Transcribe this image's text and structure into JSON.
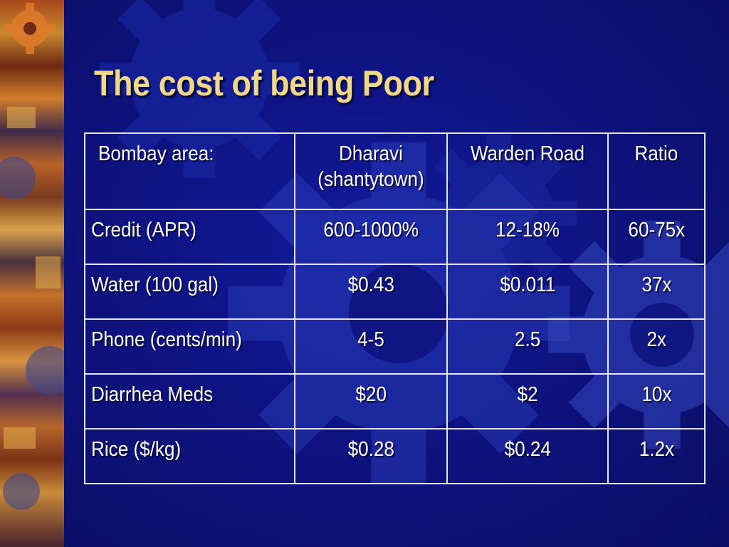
{
  "slide": {
    "title": "The cost of being Poor"
  },
  "table": {
    "headers": {
      "area": "Bombay area:",
      "dharavi_line1": "Dharavi",
      "dharavi_line2": "(shantytown)",
      "warden": "Warden Road",
      "ratio": "Ratio"
    },
    "rows": [
      {
        "item": "Credit (APR)",
        "dharavi": "600-1000%",
        "warden": "12-18%",
        "ratio": "60-75x"
      },
      {
        "item": "Water (100 gal)",
        "dharavi": "$0.43",
        "warden": "$0.011",
        "ratio": "37x"
      },
      {
        "item": "Phone (cents/min)",
        "dharavi": "4-5",
        "warden": "2.5",
        "ratio": "2x"
      },
      {
        "item": "Diarrhea Meds",
        "dharavi": "$20",
        "warden": "$2",
        "ratio": "10x"
      },
      {
        "item": "Rice ($/kg)",
        "dharavi": "$0.28",
        "warden": "$0.24",
        "ratio": "1.2x"
      }
    ]
  },
  "colors": {
    "background": "#0d127c",
    "title": "#f0d78a",
    "text": "#ffffff",
    "border": "#e6e6f2"
  },
  "icons": {
    "background_decoration": "gear-icon"
  }
}
